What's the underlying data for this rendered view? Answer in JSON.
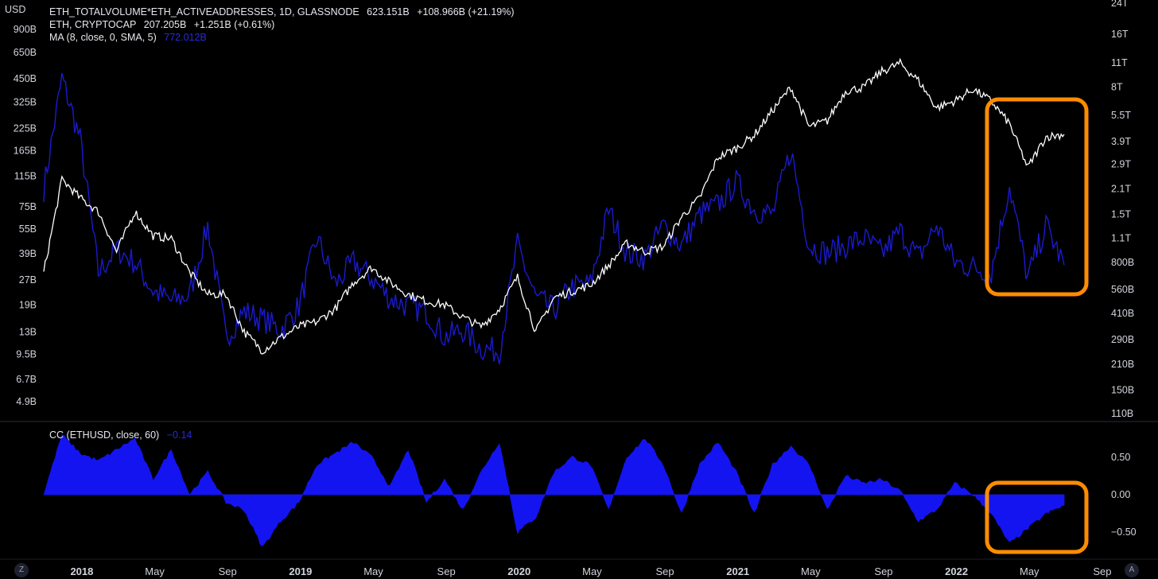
{
  "header": {
    "currency_label": "USD"
  },
  "legend": {
    "line1": {
      "name": "ETH_TOTALVOLUME*ETH_ACTIVEADDRESSES, 1D, GLASSNODE",
      "value": "623.151B",
      "change": "+108.966B (+21.19%)"
    },
    "line2": {
      "name": "ETH, CRYPTOCAP",
      "value": "207.205B",
      "change": "+1.251B (+0.61%)"
    },
    "line3": {
      "name": "MA (8, close, 0, SMA, 5)",
      "value": "772.012B",
      "value_color": "#2a2ad6"
    }
  },
  "indicator": {
    "name": "CC (ETHUSD, close, 60)",
    "value": "−0.14",
    "value_color": "#2a2ad6"
  },
  "controls": {
    "left_button": "Z",
    "right_button": "A"
  },
  "colors": {
    "background": "#000000",
    "ma_line": "#1a1ad0",
    "eth_line": "#ffffff",
    "cc_fill": "#1414f0",
    "highlight": "#ff8c00"
  },
  "chart_data": [
    {
      "type": "line",
      "title": "",
      "scale": "log",
      "x_ticks": [
        "2018",
        "May",
        "Sep",
        "2019",
        "May",
        "Sep",
        "2020",
        "May",
        "Sep",
        "2021",
        "May",
        "Sep",
        "2022",
        "May",
        "Sep"
      ],
      "x_ticks_bold": [
        true,
        false,
        false,
        true,
        false,
        false,
        true,
        false,
        false,
        true,
        false,
        false,
        true,
        false,
        false
      ],
      "left_axis_ticks": [
        "900B",
        "650B",
        "450B",
        "325B",
        "225B",
        "165B",
        "115B",
        "75B",
        "55B",
        "39B",
        "27B",
        "19B",
        "13B",
        "9.5B",
        "6.7B",
        "4.9B"
      ],
      "right_axis_ticks": [
        "24T",
        "16T",
        "11T",
        "8T",
        "5.5T",
        "3.9T",
        "2.9T",
        "2.1T",
        "1.5T",
        "1.1T",
        "800B",
        "560B",
        "410B",
        "290B",
        "210B",
        "150B",
        "110B"
      ],
      "series": [
        {
          "name": "ETH, CRYPTOCAP",
          "axis": "left",
          "points": [
            [
              "2017-12",
              30
            ],
            [
              "2018-01",
              110
            ],
            [
              "2018-02",
              85
            ],
            [
              "2018-03",
              70
            ],
            [
              "2018-04",
              40
            ],
            [
              "2018-05",
              70
            ],
            [
              "2018-06",
              50
            ],
            [
              "2018-07",
              48
            ],
            [
              "2018-08",
              30
            ],
            [
              "2018-09",
              22
            ],
            [
              "2018-10",
              22
            ],
            [
              "2018-11",
              13
            ],
            [
              "2018-12",
              10
            ],
            [
              "2019-01",
              12
            ],
            [
              "2019-02",
              14
            ],
            [
              "2019-03",
              15
            ],
            [
              "2019-04",
              18
            ],
            [
              "2019-05",
              26
            ],
            [
              "2019-06",
              32
            ],
            [
              "2019-07",
              26
            ],
            [
              "2019-08",
              22
            ],
            [
              "2019-09",
              20
            ],
            [
              "2019-10",
              19
            ],
            [
              "2019-11",
              16
            ],
            [
              "2019-12",
              14
            ],
            [
              "2020-01",
              18
            ],
            [
              "2020-02",
              28
            ],
            [
              "2020-03",
              13
            ],
            [
              "2020-04",
              21
            ],
            [
              "2020-05",
              23
            ],
            [
              "2020-06",
              25
            ],
            [
              "2020-07",
              33
            ],
            [
              "2020-08",
              45
            ],
            [
              "2020-09",
              40
            ],
            [
              "2020-10",
              43
            ],
            [
              "2020-11",
              65
            ],
            [
              "2020-12",
              85
            ],
            [
              "2021-01",
              150
            ],
            [
              "2021-02",
              170
            ],
            [
              "2021-03",
              205
            ],
            [
              "2021-04",
              290
            ],
            [
              "2021-05",
              400
            ],
            [
              "2021-06",
              230
            ],
            [
              "2021-07",
              250
            ],
            [
              "2021-08",
              380
            ],
            [
              "2021-09",
              400
            ],
            [
              "2021-10",
              500
            ],
            [
              "2021-11",
              560
            ],
            [
              "2021-12",
              440
            ],
            [
              "2022-01",
              300
            ],
            [
              "2022-02",
              330
            ],
            [
              "2022-03",
              390
            ],
            [
              "2022-04",
              330
            ],
            [
              "2022-05",
              240
            ],
            [
              "2022-06",
              130
            ],
            [
              "2022-07",
              200
            ],
            [
              "2022-08",
              207
            ]
          ]
        },
        {
          "name": "MA (8, close, 0, SMA, 5)",
          "axis": "right",
          "points": [
            [
              "2017-12",
              2100
            ],
            [
              "2018-01",
              9000
            ],
            [
              "2018-02",
              4000
            ],
            [
              "2018-03",
              700
            ],
            [
              "2018-04",
              950
            ],
            [
              "2018-05",
              800
            ],
            [
              "2018-06",
              550
            ],
            [
              "2018-07",
              480
            ],
            [
              "2018-08",
              520
            ],
            [
              "2018-09",
              1300
            ],
            [
              "2018-10",
              300
            ],
            [
              "2018-11",
              420
            ],
            [
              "2018-12",
              380
            ],
            [
              "2019-01",
              330
            ],
            [
              "2019-02",
              450
            ],
            [
              "2019-03",
              1100
            ],
            [
              "2019-04",
              600
            ],
            [
              "2019-05",
              800
            ],
            [
              "2019-06",
              650
            ],
            [
              "2019-07",
              500
            ],
            [
              "2019-08",
              450
            ],
            [
              "2019-09",
              420
            ],
            [
              "2019-10",
              300
            ],
            [
              "2019-11",
              330
            ],
            [
              "2019-12",
              260
            ],
            [
              "2020-01",
              250
            ],
            [
              "2020-02",
              1000
            ],
            [
              "2020-03",
              500
            ],
            [
              "2020-04",
              430
            ],
            [
              "2020-05",
              580
            ],
            [
              "2020-06",
              600
            ],
            [
              "2020-07",
              1600
            ],
            [
              "2020-08",
              900
            ],
            [
              "2020-09",
              850
            ],
            [
              "2020-10",
              1300
            ],
            [
              "2020-11",
              1000
            ],
            [
              "2020-12",
              1500
            ],
            [
              "2021-01",
              1700
            ],
            [
              "2021-02",
              2300
            ],
            [
              "2021-03",
              1600
            ],
            [
              "2021-04",
              1500
            ],
            [
              "2021-05",
              3500
            ],
            [
              "2021-06",
              1000
            ],
            [
              "2021-07",
              900
            ],
            [
              "2021-08",
              1000
            ],
            [
              "2021-09",
              1100
            ],
            [
              "2021-10",
              900
            ],
            [
              "2021-11",
              1200
            ],
            [
              "2021-12",
              850
            ],
            [
              "2022-01",
              1300
            ],
            [
              "2022-02",
              800
            ],
            [
              "2022-03",
              750
            ],
            [
              "2022-04",
              700
            ],
            [
              "2022-05",
              2200
            ],
            [
              "2022-06",
              650
            ],
            [
              "2022-07",
              1300
            ],
            [
              "2022-08",
              772
            ]
          ]
        }
      ]
    },
    {
      "type": "area",
      "title": "CC (ETHUSD, close, 60)",
      "y_ticks": [
        "0.50",
        "0.00",
        "−0.50"
      ],
      "series": [
        {
          "name": "CC (ETHUSD, close, 60)",
          "points": [
            [
              "2017-12",
              0.0
            ],
            [
              "2018-01",
              0.8
            ],
            [
              "2018-02",
              0.55
            ],
            [
              "2018-03",
              0.45
            ],
            [
              "2018-04",
              0.6
            ],
            [
              "2018-05",
              0.75
            ],
            [
              "2018-06",
              0.2
            ],
            [
              "2018-07",
              0.6
            ],
            [
              "2018-08",
              0.0
            ],
            [
              "2018-09",
              0.3
            ],
            [
              "2018-10",
              -0.1
            ],
            [
              "2018-11",
              -0.2
            ],
            [
              "2018-12",
              -0.7
            ],
            [
              "2019-01",
              -0.35
            ],
            [
              "2019-02",
              -0.1
            ],
            [
              "2019-03",
              0.4
            ],
            [
              "2019-04",
              0.55
            ],
            [
              "2019-05",
              0.7
            ],
            [
              "2019-06",
              0.5
            ],
            [
              "2019-07",
              0.1
            ],
            [
              "2019-08",
              0.6
            ],
            [
              "2019-09",
              -0.1
            ],
            [
              "2019-10",
              0.2
            ],
            [
              "2019-11",
              -0.2
            ],
            [
              "2019-12",
              0.3
            ],
            [
              "2020-01",
              0.7
            ],
            [
              "2020-02",
              -0.5
            ],
            [
              "2020-03",
              -0.3
            ],
            [
              "2020-04",
              0.3
            ],
            [
              "2020-05",
              0.5
            ],
            [
              "2020-06",
              0.4
            ],
            [
              "2020-07",
              -0.2
            ],
            [
              "2020-08",
              0.5
            ],
            [
              "2020-09",
              0.75
            ],
            [
              "2020-10",
              0.4
            ],
            [
              "2020-11",
              -0.25
            ],
            [
              "2020-12",
              0.4
            ],
            [
              "2021-01",
              0.7
            ],
            [
              "2021-02",
              0.3
            ],
            [
              "2021-03",
              -0.25
            ],
            [
              "2021-04",
              0.4
            ],
            [
              "2021-05",
              0.65
            ],
            [
              "2021-06",
              0.4
            ],
            [
              "2021-07",
              -0.2
            ],
            [
              "2021-08",
              0.25
            ],
            [
              "2021-09",
              0.15
            ],
            [
              "2021-10",
              0.2
            ],
            [
              "2021-11",
              0.05
            ],
            [
              "2021-12",
              -0.35
            ],
            [
              "2022-01",
              -0.2
            ],
            [
              "2022-02",
              0.15
            ],
            [
              "2022-03",
              0.0
            ],
            [
              "2022-04",
              -0.25
            ],
            [
              "2022-05",
              -0.65
            ],
            [
              "2022-06",
              -0.45
            ],
            [
              "2022-07",
              -0.25
            ],
            [
              "2022-08",
              -0.14
            ]
          ]
        }
      ]
    }
  ]
}
